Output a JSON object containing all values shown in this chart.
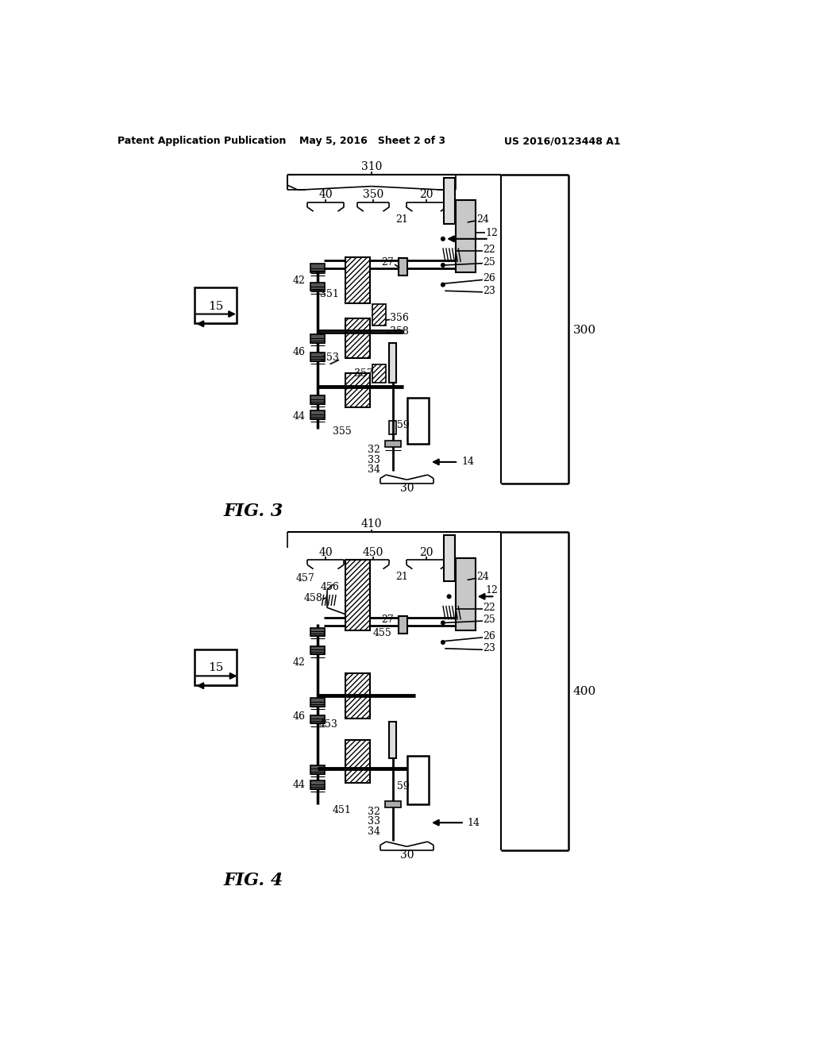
{
  "bg_color": "#ffffff",
  "header_left": "Patent Application Publication",
  "header_center": "May 5, 2016   Sheet 2 of 3",
  "header_right": "US 2016/0123448 A1"
}
